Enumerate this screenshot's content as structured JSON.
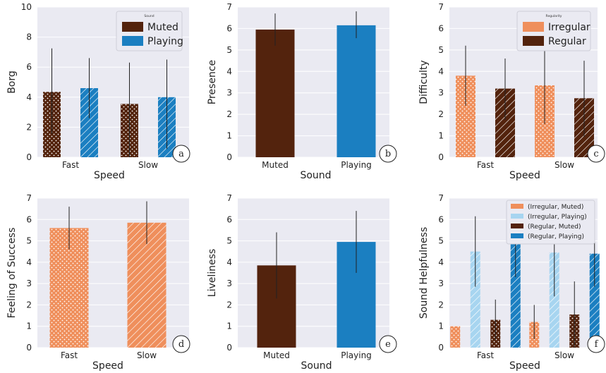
{
  "colors": {
    "orange": "#ef8f5c",
    "light_blue": "#a7d5f0",
    "dark_brown": "#53230d",
    "blue": "#1b7fc1",
    "panel_bg": "#eaeaf2",
    "grid": "#ffffff",
    "errorbar": "#222222"
  },
  "chart_data": [
    {
      "id": "a",
      "type": "bar",
      "panel_letter": "a",
      "xlabel": "Speed",
      "ylabel": "Borg",
      "ylim": [
        0,
        10
      ],
      "yticks": [
        0,
        2,
        4,
        6,
        8,
        10
      ],
      "categories": [
        "Fast",
        "Slow"
      ],
      "series": [
        {
          "name": "Muted",
          "color": "dark_brown",
          "pattern": "dots",
          "values": [
            4.35,
            3.55
          ],
          "err_low": [
            1.55,
            0.0
          ],
          "err_high": [
            7.25,
            6.3
          ]
        },
        {
          "name": "Playing",
          "color": "blue",
          "pattern": "hatch",
          "values": [
            4.6,
            4.0
          ],
          "err_low": [
            2.6,
            0.55
          ],
          "err_high": [
            6.6,
            6.5
          ]
        }
      ],
      "legend": {
        "title": "Sound",
        "position": "top-right",
        "entries": [
          "Muted",
          "Playing"
        ]
      },
      "grid": true
    },
    {
      "id": "b",
      "type": "bar",
      "panel_letter": "b",
      "xlabel": "Sound",
      "ylabel": "Presence",
      "ylim": [
        0,
        7
      ],
      "yticks": [
        0,
        1,
        2,
        3,
        4,
        5,
        6,
        7
      ],
      "categories": [
        "Muted",
        "Playing"
      ],
      "series": [
        {
          "name": "",
          "colors": [
            "dark_brown",
            "blue"
          ],
          "pattern": "none",
          "values": [
            5.95,
            6.15
          ],
          "err_low": [
            5.2,
            5.55
          ],
          "err_high": [
            6.7,
            6.8
          ]
        }
      ],
      "grid": true
    },
    {
      "id": "c",
      "type": "bar",
      "panel_letter": "c",
      "xlabel": "Speed",
      "ylabel": "Difficulty",
      "ylim": [
        0,
        7
      ],
      "yticks": [
        0,
        1,
        2,
        3,
        4,
        5,
        6,
        7
      ],
      "categories": [
        "Fast",
        "Slow"
      ],
      "series": [
        {
          "name": "Irregular",
          "color": "orange",
          "pattern": "dots",
          "values": [
            3.8,
            3.35
          ],
          "err_low": [
            2.4,
            1.55
          ],
          "err_high": [
            5.2,
            5.1
          ]
        },
        {
          "name": "Regular",
          "color": "dark_brown",
          "pattern": "hatch",
          "values": [
            3.2,
            2.75
          ],
          "err_low": [
            1.75,
            0.95
          ],
          "err_high": [
            4.6,
            4.5
          ]
        }
      ],
      "legend": {
        "title": "Regularity",
        "position": "top-right",
        "entries": [
          "Irregular",
          "Regular"
        ]
      },
      "grid": true
    },
    {
      "id": "d",
      "type": "bar",
      "panel_letter": "d",
      "xlabel": "Speed",
      "ylabel": "Feeling of Success",
      "ylim": [
        0,
        7
      ],
      "yticks": [
        0,
        1,
        2,
        3,
        4,
        5,
        6,
        7
      ],
      "categories": [
        "Fast",
        "Slow"
      ],
      "series": [
        {
          "name": "",
          "colors": [
            "orange",
            "orange"
          ],
          "patterns": [
            "dots",
            "hatch"
          ],
          "values": [
            5.6,
            5.85
          ],
          "err_low": [
            4.6,
            4.85
          ],
          "err_high": [
            6.6,
            6.85
          ]
        }
      ],
      "grid": true
    },
    {
      "id": "e",
      "type": "bar",
      "panel_letter": "e",
      "xlabel": "Sound",
      "ylabel": "Liveliness",
      "ylim": [
        0,
        7
      ],
      "yticks": [
        0,
        1,
        2,
        3,
        4,
        5,
        6,
        7
      ],
      "categories": [
        "Muted",
        "Playing"
      ],
      "series": [
        {
          "name": "",
          "colors": [
            "dark_brown",
            "blue"
          ],
          "pattern": "none",
          "values": [
            3.85,
            4.95
          ],
          "err_low": [
            2.3,
            3.5
          ],
          "err_high": [
            5.4,
            6.4
          ]
        }
      ],
      "grid": true
    },
    {
      "id": "f",
      "type": "bar",
      "panel_letter": "f",
      "xlabel": "Speed",
      "ylabel": "Sound Helpfulness",
      "ylim": [
        0,
        7
      ],
      "yticks": [
        0,
        1,
        2,
        3,
        4,
        5,
        6,
        7
      ],
      "categories": [
        "Fast",
        "Slow"
      ],
      "series": [
        {
          "name": "(Irregular, Muted)",
          "color": "orange",
          "pattern": "dots",
          "values": [
            1.0,
            1.2
          ],
          "err_low": [
            null,
            0.4
          ],
          "err_high": [
            null,
            2.0
          ]
        },
        {
          "name": "(Irregular, Playing)",
          "color": "light_blue",
          "pattern": "hatch",
          "values": [
            4.5,
            4.45
          ],
          "err_low": [
            2.85,
            2.4
          ],
          "err_high": [
            6.15,
            6.5
          ]
        },
        {
          "name": "(Regular, Muted)",
          "color": "dark_brown",
          "pattern": "dots",
          "values": [
            1.3,
            1.55
          ],
          "err_low": [
            0.35,
            0.0
          ],
          "err_high": [
            2.25,
            3.1
          ]
        },
        {
          "name": "(Regular, Playing)",
          "color": "blue",
          "pattern": "hatch",
          "values": [
            5.0,
            4.4
          ],
          "err_low": [
            3.3,
            2.85
          ],
          "err_high": [
            6.7,
            5.95
          ]
        }
      ],
      "legend": {
        "title": "",
        "position": "top-right",
        "entries": [
          "(Irregular, Muted)",
          "(Irregular, Playing)",
          "(Regular, Muted)",
          "(Regular, Playing)"
        ]
      },
      "grid": true
    }
  ]
}
